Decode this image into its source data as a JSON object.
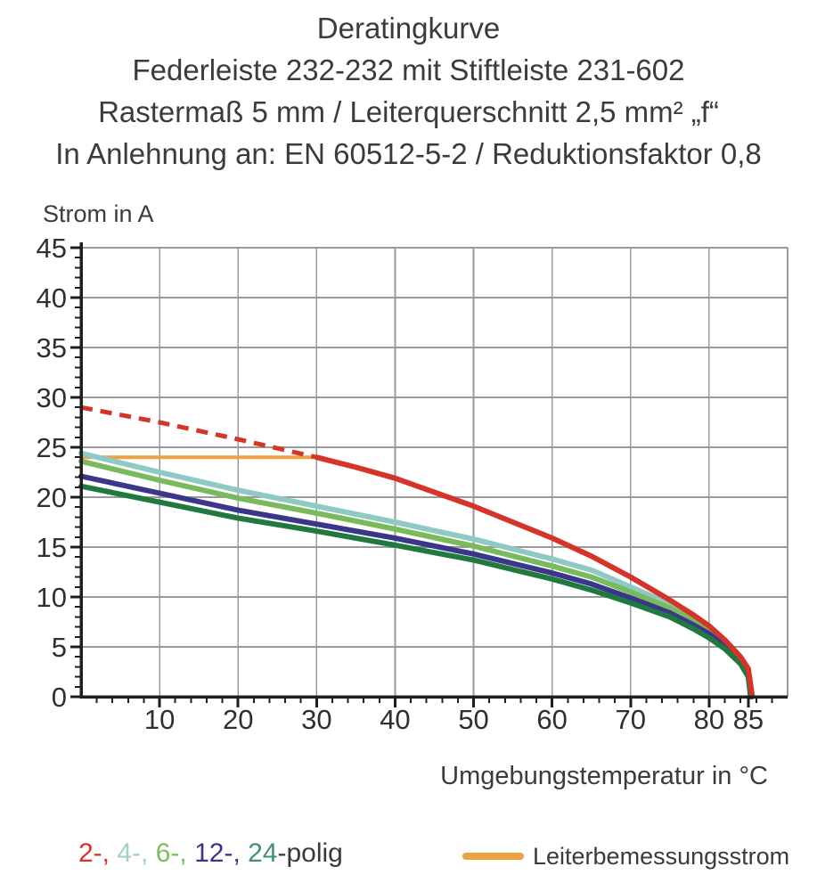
{
  "title_lines": [
    "Deratingkurve",
    "Federleiste 232-232 mit Stiftleiste 231-602",
    "Rastermaß 5 mm / Leiterquerschnitt 2,5 mm² „f“",
    "In Anlehnung an: EN 60512-5-2 / Reduktionsfaktor 0,8"
  ],
  "axes": {
    "y_label": "Strom in A",
    "x_label": "Umgebungstemperatur in °C"
  },
  "legend": {
    "polig_items": [
      {
        "text": "2-,",
        "color": "#d63428"
      },
      {
        "text": "4-,",
        "color": "#a3cfcb"
      },
      {
        "text": "6-,",
        "color": "#7cbd60"
      },
      {
        "text": "12-,",
        "color": "#3a378b"
      },
      {
        "text": "24",
        "color": "#43926f"
      }
    ],
    "polig_suffix": "-polig",
    "rated_current_label": "Leiterbemessungsstrom",
    "rated_current_color": "#eda140"
  },
  "chart_data": {
    "type": "line",
    "title": "Deratingkurve",
    "xlabel": "Umgebungstemperatur in °C",
    "ylabel": "Strom in A",
    "xlim": [
      0,
      90
    ],
    "ylim": [
      0,
      45
    ],
    "grid": true,
    "grid_color": "#9a9a9a",
    "axis_color": "#1f1f1f",
    "tick_label_color": "#2f2f2f",
    "x_major_ticks": [
      10,
      20,
      30,
      40,
      50,
      60,
      70,
      80,
      85
    ],
    "x_minor_step": 2,
    "x_minor_max": 88,
    "y_major_ticks": [
      0,
      5,
      10,
      15,
      20,
      25,
      30,
      35,
      40,
      45
    ],
    "y_minor_step": 1,
    "x_gridlines": [
      10,
      20,
      30,
      40,
      50,
      60,
      70,
      80,
      90
    ],
    "y_gridlines": [
      5,
      10,
      15,
      20,
      25,
      30,
      35,
      40,
      45
    ],
    "series": [
      {
        "name": "Leiterbemessungsstrom",
        "color": "#eda140",
        "width": 4,
        "dash": null,
        "points": [
          [
            0,
            24
          ],
          [
            30,
            24
          ]
        ]
      },
      {
        "name": "4-polig",
        "color": "#8fc9c4",
        "width": 6,
        "dash": null,
        "points": [
          [
            0,
            24.4
          ],
          [
            10,
            22.5
          ],
          [
            20,
            20.7
          ],
          [
            30,
            19.1
          ],
          [
            40,
            17.5
          ],
          [
            50,
            15.8
          ],
          [
            60,
            13.8
          ],
          [
            65,
            12.7
          ],
          [
            70,
            11.0
          ],
          [
            75,
            9.3
          ],
          [
            78,
            8.0
          ],
          [
            80,
            7.0
          ],
          [
            82,
            5.7
          ],
          [
            84,
            3.9
          ],
          [
            85,
            2.5
          ],
          [
            85.4,
            0
          ]
        ]
      },
      {
        "name": "6-polig",
        "color": "#78ba5c",
        "width": 6,
        "dash": null,
        "points": [
          [
            0,
            23.6
          ],
          [
            10,
            21.7
          ],
          [
            20,
            19.9
          ],
          [
            30,
            18.4
          ],
          [
            40,
            16.8
          ],
          [
            50,
            15.1
          ],
          [
            60,
            13.1
          ],
          [
            65,
            12.0
          ],
          [
            70,
            10.5
          ],
          [
            75,
            8.9
          ],
          [
            78,
            7.7
          ],
          [
            80,
            6.7
          ],
          [
            82,
            5.4
          ],
          [
            84,
            3.7
          ],
          [
            85,
            2.3
          ],
          [
            85.4,
            0
          ]
        ]
      },
      {
        "name": "12-polig",
        "color": "#3a378b",
        "width": 6,
        "dash": null,
        "points": [
          [
            0,
            22.1
          ],
          [
            10,
            20.4
          ],
          [
            20,
            18.7
          ],
          [
            30,
            17.3
          ],
          [
            40,
            15.9
          ],
          [
            50,
            14.3
          ],
          [
            60,
            12.4
          ],
          [
            65,
            11.3
          ],
          [
            70,
            9.9
          ],
          [
            75,
            8.4
          ],
          [
            78,
            7.2
          ],
          [
            80,
            6.3
          ],
          [
            82,
            5.1
          ],
          [
            84,
            3.5
          ],
          [
            85,
            2.1
          ],
          [
            85.3,
            0
          ]
        ]
      },
      {
        "name": "24-polig",
        "color": "#20793f",
        "width": 6,
        "dash": null,
        "points": [
          [
            0,
            21.1
          ],
          [
            10,
            19.5
          ],
          [
            20,
            17.9
          ],
          [
            30,
            16.6
          ],
          [
            40,
            15.2
          ],
          [
            50,
            13.7
          ],
          [
            60,
            11.8
          ],
          [
            65,
            10.7
          ],
          [
            70,
            9.4
          ],
          [
            75,
            8.0
          ],
          [
            78,
            6.8
          ],
          [
            80,
            5.9
          ],
          [
            82,
            4.8
          ],
          [
            84,
            3.3
          ],
          [
            85,
            2.0
          ],
          [
            85.3,
            0
          ]
        ]
      },
      {
        "name": "2-polig (unbegrenzt, gestrichelt)",
        "color": "#d63428",
        "width": 5,
        "dash": [
          13,
          9
        ],
        "points": [
          [
            0,
            29
          ],
          [
            10,
            27.5
          ],
          [
            20,
            25.8
          ],
          [
            30,
            24
          ]
        ]
      },
      {
        "name": "2-polig",
        "color": "#d63428",
        "width": 6,
        "dash": null,
        "points": [
          [
            30,
            24
          ],
          [
            35,
            23.0
          ],
          [
            40,
            21.9
          ],
          [
            45,
            20.5
          ],
          [
            50,
            19.1
          ],
          [
            55,
            17.5
          ],
          [
            60,
            15.9
          ],
          [
            65,
            14.1
          ],
          [
            70,
            12.0
          ],
          [
            75,
            9.7
          ],
          [
            78,
            8.2
          ],
          [
            80,
            7.1
          ],
          [
            82,
            5.7
          ],
          [
            84,
            4.0
          ],
          [
            85,
            2.8
          ],
          [
            85.5,
            0
          ]
        ]
      }
    ]
  }
}
